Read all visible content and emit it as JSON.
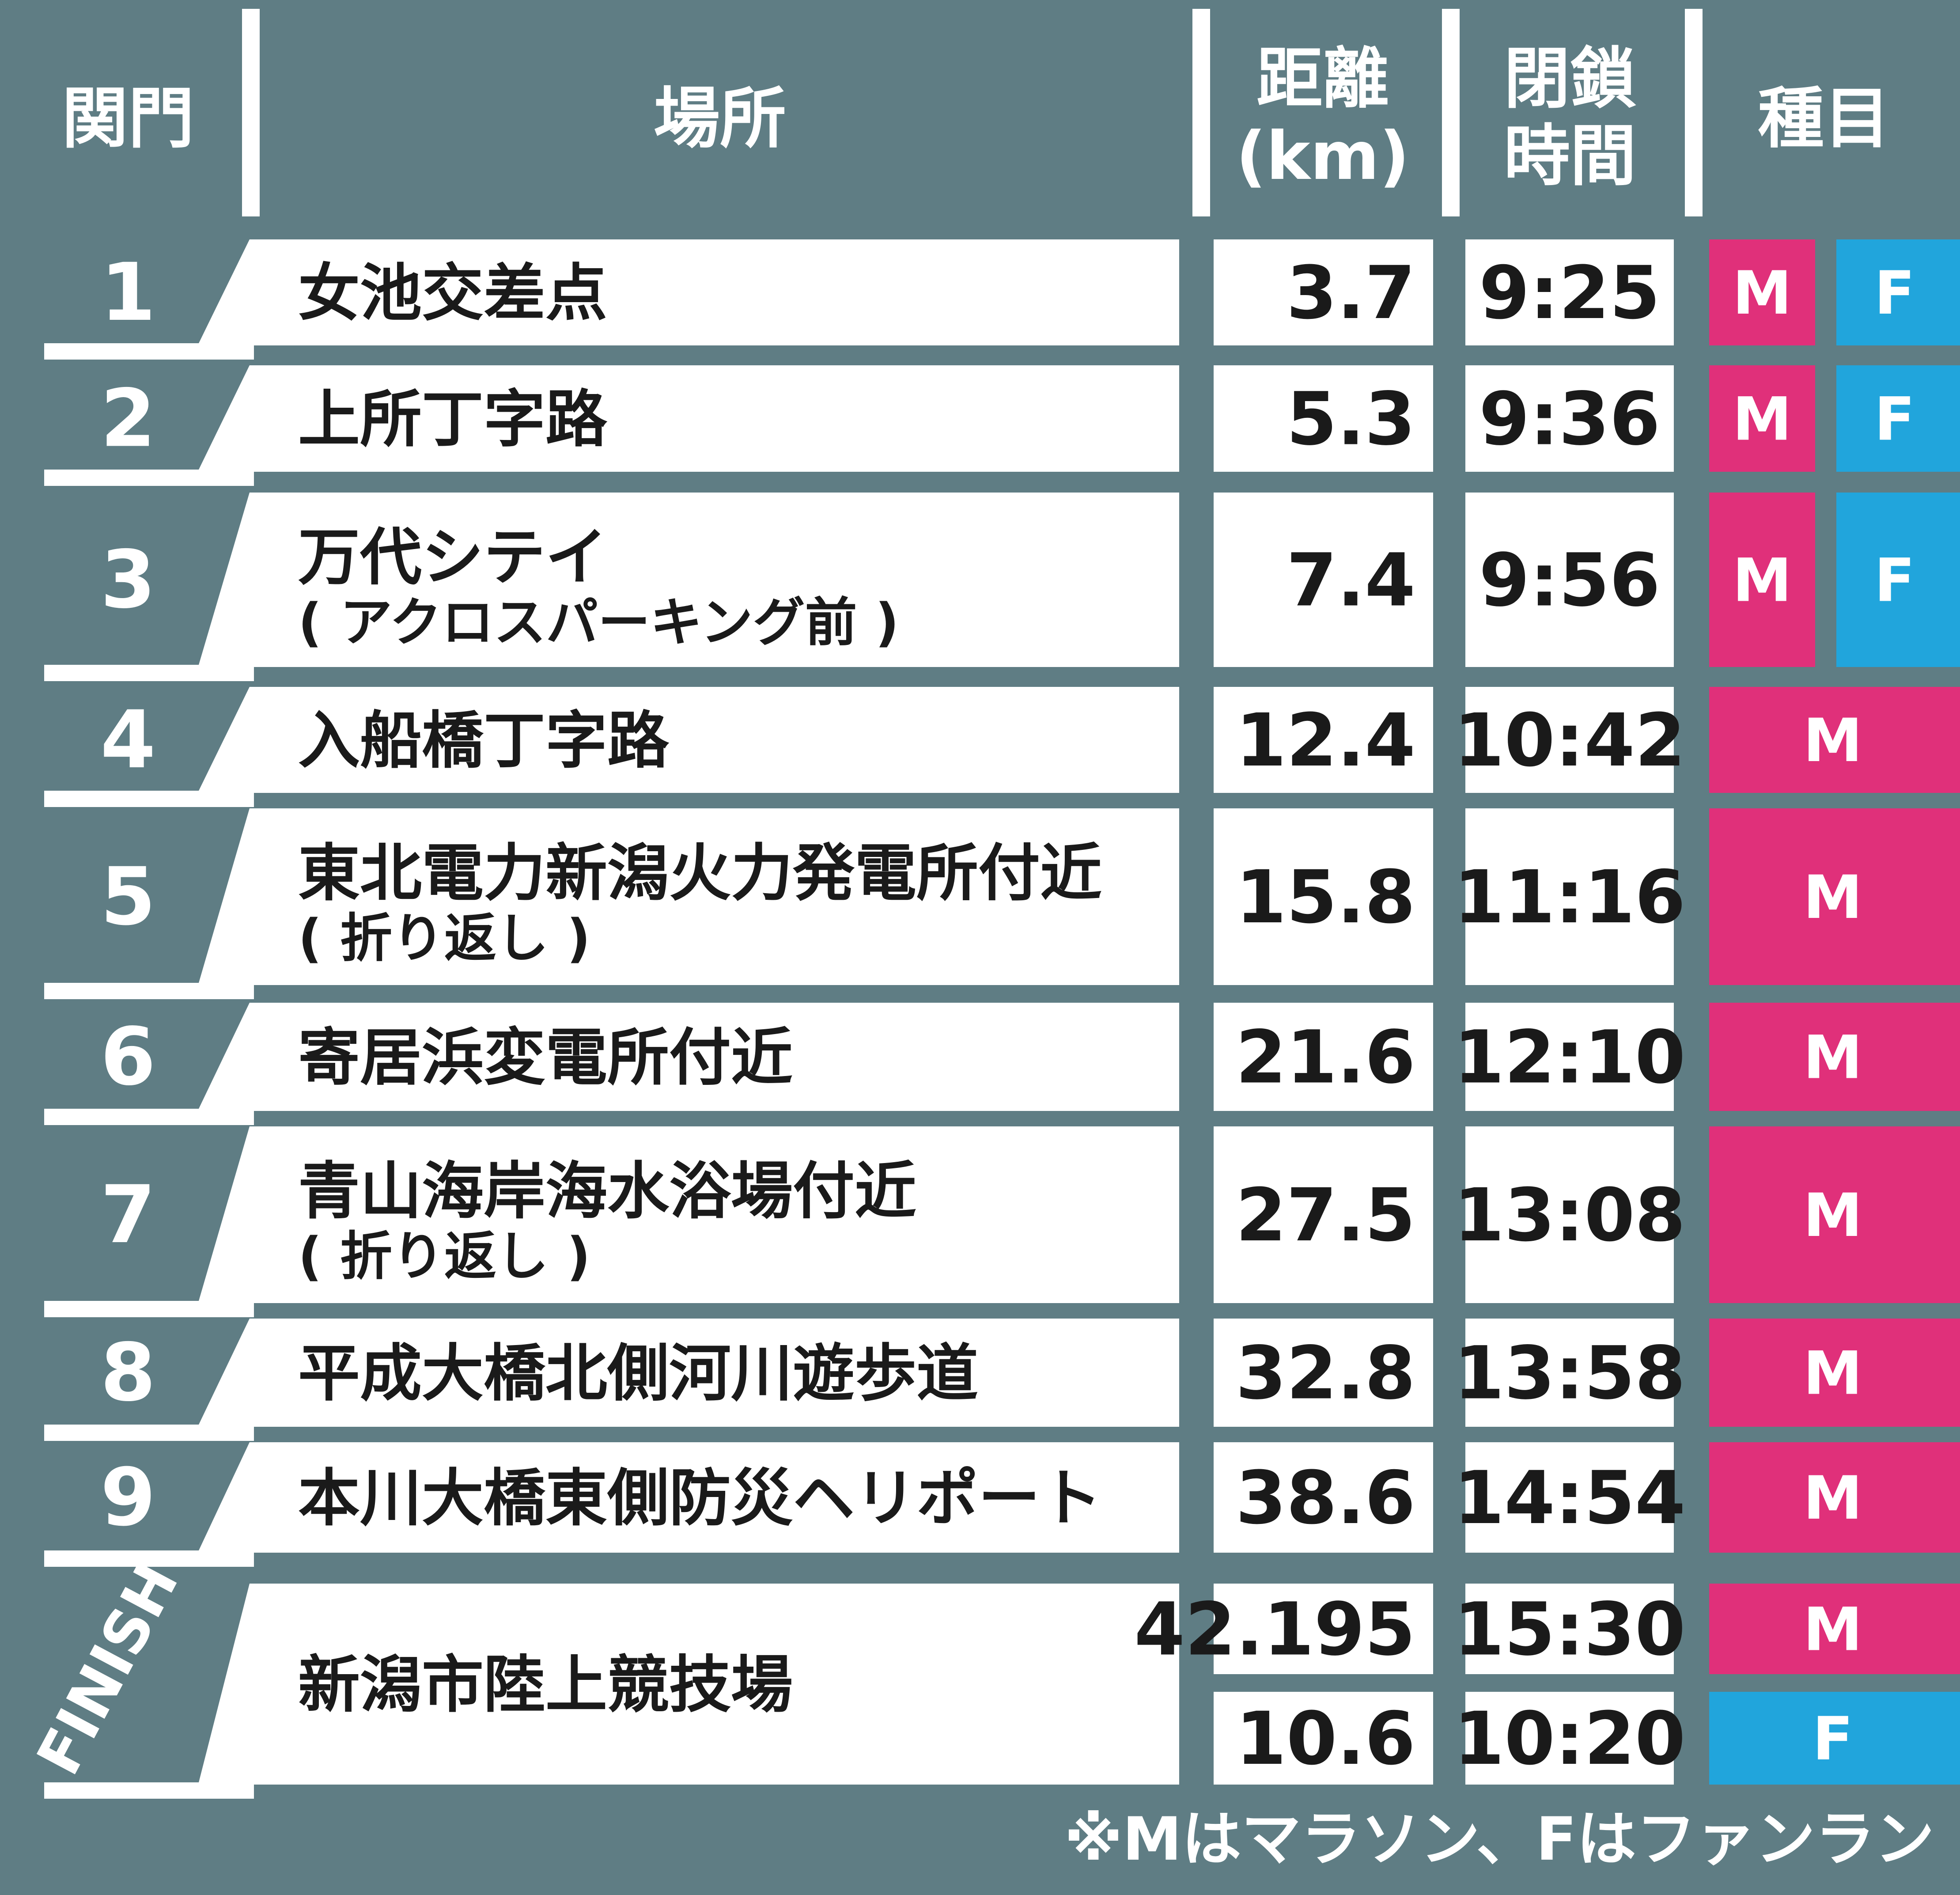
{
  "colors": {
    "panel": "#5f7d84",
    "cell": "#ffffff",
    "marathon": "#e0307a",
    "funrun": "#21a5dc",
    "text": "#1a1a1a"
  },
  "headers": {
    "gate": "関門",
    "place": "場所",
    "distance_line1": "距離",
    "distance_line2": "(km)",
    "closing_line1": "閉鎖",
    "closing_line2": "時間",
    "event": "種目"
  },
  "rows": [
    {
      "gate": "1",
      "place": "女池交差点",
      "place_sub": "",
      "distance": "3.7",
      "closing": "9:25",
      "events": [
        "M",
        "F"
      ]
    },
    {
      "gate": "2",
      "place": "上所丁字路",
      "place_sub": "",
      "distance": "5.3",
      "closing": "9:36",
      "events": [
        "M",
        "F"
      ]
    },
    {
      "gate": "3",
      "place": "万代シテイ",
      "place_sub": "( アクロスパーキング前 )",
      "distance": "7.4",
      "closing": "9:56",
      "events": [
        "M",
        "F"
      ]
    },
    {
      "gate": "4",
      "place": "入船橋丁字路",
      "place_sub": "",
      "distance": "12.4",
      "closing": "10:42",
      "events": [
        "M"
      ]
    },
    {
      "gate": "5",
      "place": "東北電力新潟火力発電所付近",
      "place_sub": "( 折り返し )",
      "distance": "15.8",
      "closing": "11:16",
      "events": [
        "M"
      ]
    },
    {
      "gate": "6",
      "place": "寄居浜変電所付近",
      "place_sub": "",
      "distance": "21.6",
      "closing": "12:10",
      "events": [
        "M"
      ]
    },
    {
      "gate": "7",
      "place": "青山海岸海水浴場付近",
      "place_sub": "( 折り返し )",
      "distance": "27.5",
      "closing": "13:08",
      "events": [
        "M"
      ]
    },
    {
      "gate": "8",
      "place": "平成大橋北側河川遊歩道",
      "place_sub": "",
      "distance": "32.8",
      "closing": "13:58",
      "events": [
        "M"
      ]
    },
    {
      "gate": "9",
      "place": "本川大橋東側防災ヘリポート",
      "place_sub": "",
      "distance": "38.6",
      "closing": "14:54",
      "events": [
        "M"
      ]
    }
  ],
  "finish": {
    "label": "FINISH",
    "place": "新潟市陸上競技場",
    "entries": [
      {
        "distance": "42.195",
        "closing": "15:30",
        "event": "M"
      },
      {
        "distance": "10.6",
        "closing": "10:20",
        "event": "F"
      }
    ]
  },
  "footnote": "※Mはマラソン、Fはファンラン"
}
